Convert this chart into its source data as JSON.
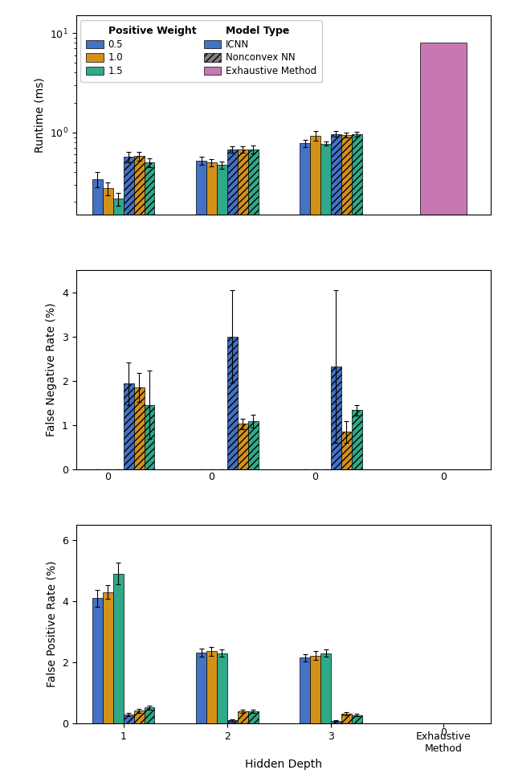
{
  "colors": {
    "blue": "#4472c4",
    "orange": "#d4911a",
    "green": "#2fa98a",
    "pink": "#c778b2"
  },
  "runtime": {
    "icnn": {
      "d1": [
        0.34,
        0.275,
        0.215
      ],
      "d2": [
        0.52,
        0.5,
        0.475
      ],
      "d3": [
        0.78,
        0.93,
        0.775
      ]
    },
    "icnn_err": {
      "d1": [
        0.06,
        0.04,
        0.03
      ],
      "d2": [
        0.05,
        0.04,
        0.04
      ],
      "d3": [
        0.06,
        0.1,
        0.04
      ]
    },
    "nncv": {
      "d1": [
        0.57,
        0.58,
        0.5
      ],
      "d2": [
        0.68,
        0.68,
        0.68
      ],
      "d3": [
        0.97,
        0.95,
        0.96
      ]
    },
    "nncv_err": {
      "d1": [
        0.07,
        0.06,
        0.05
      ],
      "d2": [
        0.05,
        0.05,
        0.06
      ],
      "d3": [
        0.06,
        0.05,
        0.05
      ]
    },
    "exhaustive": 8.0,
    "ylim": [
      0.15,
      15.0
    ],
    "ylabel": "Runtime (ms)"
  },
  "fnr": {
    "icnn": {
      "d1": [
        0.0,
        0.0,
        0.0
      ],
      "d2": [
        0.0,
        0.0,
        0.0
      ],
      "d3": [
        0.0,
        0.0,
        0.0
      ]
    },
    "icnn_err": {
      "d1": [
        0.0,
        0.0,
        0.0
      ],
      "d2": [
        0.0,
        0.0,
        0.0
      ],
      "d3": [
        0.0,
        0.0,
        0.0
      ]
    },
    "nncv": {
      "d1": [
        1.93,
        1.85,
        1.45
      ],
      "d2": [
        3.0,
        1.02,
        1.08
      ],
      "d3": [
        2.32,
        0.84,
        1.33
      ]
    },
    "nncv_err": {
      "d1": [
        0.48,
        0.33,
        0.77
      ],
      "d2": [
        1.05,
        0.12,
        0.14
      ],
      "d3": [
        1.72,
        0.25,
        0.12
      ]
    },
    "exhaustive": 0.0,
    "ylim": [
      0,
      4.5
    ],
    "yticks": [
      0,
      1,
      2,
      3,
      4
    ],
    "ylabel": "False Negative Rate (%)"
  },
  "fpr": {
    "icnn": {
      "d1": [
        4.1,
        4.3,
        4.9
      ],
      "d2": [
        2.32,
        2.36,
        2.3
      ],
      "d3": [
        2.15,
        2.22,
        2.3
      ]
    },
    "icnn_err": {
      "d1": [
        0.28,
        0.22,
        0.35
      ],
      "d2": [
        0.14,
        0.14,
        0.12
      ],
      "d3": [
        0.11,
        0.14,
        0.11
      ]
    },
    "nncv": {
      "d1": [
        0.3,
        0.42,
        0.52
      ],
      "d2": [
        0.11,
        0.4,
        0.4
      ],
      "d3": [
        0.09,
        0.33,
        0.27
      ]
    },
    "nncv_err": {
      "d1": [
        0.06,
        0.07,
        0.07
      ],
      "d2": [
        0.04,
        0.06,
        0.05
      ],
      "d3": [
        0.03,
        0.05,
        0.04
      ]
    },
    "exhaustive": 0.0,
    "ylim": [
      0,
      6.5
    ],
    "yticks": [
      0,
      2,
      4,
      6
    ],
    "ylabel": "False Positive Rate (%)"
  },
  "xlabel": "Hidden Depth",
  "x_tick_labels": [
    "1",
    "2",
    "3",
    "Exhaustive\nMethod"
  ],
  "group_centers": [
    0.5,
    1.7,
    2.9,
    4.2
  ],
  "bar_width": 0.12,
  "n_icnn": 3,
  "n_nncv": 3
}
